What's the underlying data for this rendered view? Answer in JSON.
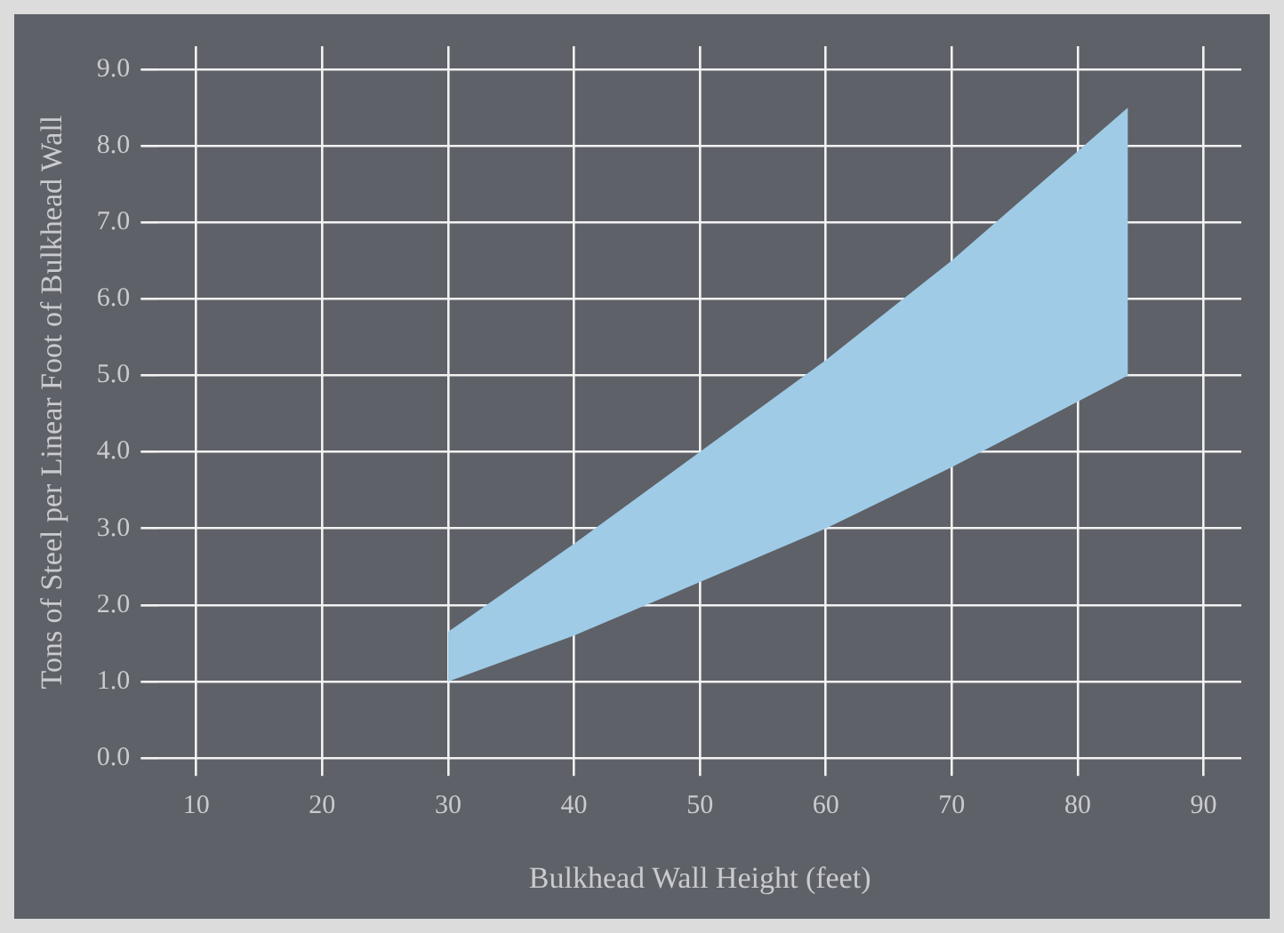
{
  "chart_data": {
    "type": "area",
    "xlabel": "Bulkhead Wall Height (feet)",
    "ylabel": "Tons of Steel per Linear Foot of Bulkhead Wall",
    "x": [
      30,
      40,
      50,
      60,
      70,
      84
    ],
    "series": [
      {
        "color": "#9fcbe6",
        "values": [
          null,
          null,
          null,
          null,
          null,
          null
        ],
        "lower": [
          1.0,
          1.6,
          2.3,
          3.0,
          3.8,
          5.0
        ],
        "upper": [
          1.65,
          2.8,
          4.0,
          5.2,
          6.5,
          8.5
        ]
      }
    ],
    "xlim": [
      7,
      93
    ],
    "xticks": [
      10,
      20,
      30,
      40,
      50,
      60,
      70,
      80,
      90
    ],
    "ylim": [
      0,
      9.3
    ],
    "yticks": [
      {
        "value": 0,
        "label": "0.0"
      },
      {
        "value": 1,
        "label": "1.0"
      },
      {
        "value": 2,
        "label": "2.0"
      },
      {
        "value": 3,
        "label": "3.0"
      },
      {
        "value": 4,
        "label": "4.0"
      },
      {
        "value": 5,
        "label": "5.0"
      },
      {
        "value": 6,
        "label": "6.0"
      },
      {
        "value": 7,
        "label": "7.0"
      },
      {
        "value": 8,
        "label": "8.0"
      },
      {
        "value": 9,
        "label": "9.0"
      }
    ],
    "grid": true,
    "legend": false
  }
}
